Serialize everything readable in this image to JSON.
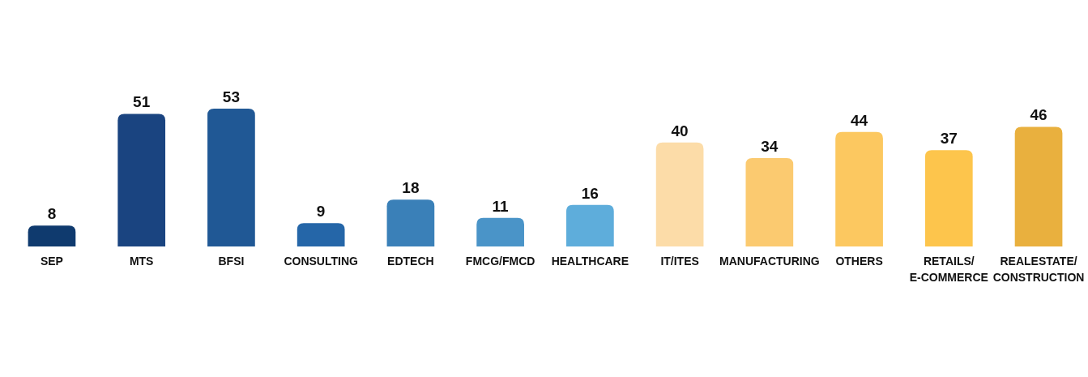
{
  "chart_data": {
    "type": "bar",
    "relative": false,
    "categories": [
      "SEP",
      "MTS",
      "BFSI",
      "CONSULTING",
      "EDTECH",
      "FMCG/FMCD",
      "HEALTHCARE",
      "IT/ITES",
      "MANUFACTURING",
      "OTHERS",
      "RETAILS/\nE-COMMERCE",
      "REALESTATE/\nCONSTRUCTION"
    ],
    "values": [
      8,
      51,
      53,
      9,
      18,
      11,
      16,
      40,
      34,
      44,
      37,
      46
    ],
    "colors": [
      "#0f3a6e",
      "#1a4480",
      "#205895",
      "#2566a8",
      "#3a80b8",
      "#4a94c8",
      "#5eaddb",
      "#fcdca8",
      "#fbca70",
      "#fcc860",
      "#fdc54c",
      "#e9b03e"
    ],
    "data_labels": true
  }
}
